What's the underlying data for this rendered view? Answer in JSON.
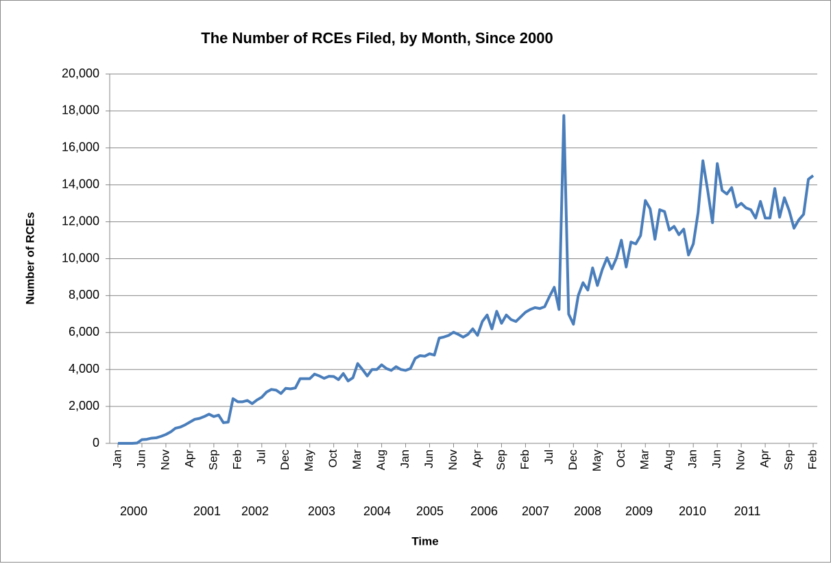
{
  "chart_data": {
    "type": "line",
    "title": "The Number of RCEs Filed, by Month, Since 2000",
    "x_label": "Time",
    "y_label": "Number of RCEs",
    "color": "#4a7ebb",
    "grid": true,
    "ylim": [
      0,
      20000
    ],
    "yticks": [
      0,
      {
        "value": 2000,
        "label": "2,000"
      },
      {
        "value": 4000,
        "label": "4,000"
      },
      {
        "value": 6000,
        "label": "6,000"
      },
      {
        "value": 8000,
        "label": "8,000"
      },
      {
        "value": 10000,
        "label": "10,000"
      },
      {
        "value": 12000,
        "label": "12,000"
      },
      {
        "value": 14000,
        "label": "14,000"
      },
      {
        "value": 16000,
        "label": "16,000"
      },
      {
        "value": 18000,
        "label": "18,000"
      },
      {
        "value": 20000,
        "label": "20,000"
      }
    ],
    "year_labels": [
      "2000",
      "2001",
      "2002",
      "2003",
      "2004",
      "2005",
      "2006",
      "2007",
      "2008",
      "2009",
      "2010",
      "2011"
    ],
    "categories": [
      "Jan",
      null,
      null,
      null,
      null,
      "Jun",
      null,
      null,
      null,
      null,
      "Nov",
      null,
      null,
      null,
      null,
      "Apr",
      null,
      null,
      null,
      null,
      "Sep",
      null,
      null,
      null,
      null,
      "Feb",
      null,
      null,
      null,
      null,
      "Jul",
      null,
      null,
      null,
      null,
      "Dec",
      null,
      null,
      null,
      null,
      "May",
      null,
      null,
      null,
      null,
      "Oct",
      null,
      null,
      null,
      null,
      "Mar",
      null,
      null,
      null,
      null,
      "Aug",
      null,
      null,
      null,
      null,
      "Jan",
      null,
      null,
      null,
      null,
      "Jun",
      null,
      null,
      null,
      null,
      "Nov",
      null,
      null,
      null,
      null,
      "Apr",
      null,
      null,
      null,
      null,
      "Sep",
      null,
      null,
      null,
      null,
      "Feb",
      null,
      null,
      null,
      null,
      "Jul",
      null,
      null,
      null,
      null,
      "Dec",
      null,
      null,
      null,
      null,
      "May",
      null,
      null,
      null,
      null,
      "Oct",
      null,
      null,
      null,
      null,
      "Mar",
      null,
      null,
      null,
      null,
      "Aug",
      null,
      null,
      null,
      null,
      "Jan",
      null,
      null,
      null,
      null,
      "Jun",
      null,
      null,
      null,
      null,
      "Nov",
      null,
      null,
      null,
      null,
      "Apr",
      null,
      null,
      null,
      null,
      "Sep",
      null,
      null,
      null,
      null,
      "Feb"
    ],
    "values": [
      0,
      0,
      0,
      0,
      20,
      200,
      220,
      280,
      300,
      380,
      480,
      620,
      820,
      880,
      1000,
      1150,
      1300,
      1350,
      1450,
      1580,
      1450,
      1530,
      1120,
      1150,
      2420,
      2250,
      2250,
      2320,
      2150,
      2350,
      2500,
      2780,
      2920,
      2880,
      2700,
      2980,
      2950,
      3000,
      3500,
      3500,
      3500,
      3750,
      3650,
      3520,
      3630,
      3620,
      3450,
      3780,
      3380,
      3550,
      4320,
      4000,
      3650,
      4000,
      4000,
      4250,
      4050,
      3950,
      4150,
      4000,
      3950,
      4050,
      4600,
      4750,
      4720,
      4850,
      4780,
      5700,
      5760,
      5850,
      6020,
      5900,
      5750,
      5900,
      6200,
      5850,
      6600,
      6950,
      6200,
      7150,
      6500,
      6950,
      6700,
      6600,
      6850,
      7100,
      7250,
      7350,
      7300,
      7400,
      7950,
      8450,
      7250,
      17750,
      7000,
      6450,
      8000,
      8700,
      8300,
      9500,
      8550,
      9400,
      10050,
      9450,
      10050,
      11000,
      9550,
      10900,
      10800,
      11250,
      13150,
      12700,
      11050,
      12650,
      12550,
      11550,
      11750,
      11300,
      11600,
      10200,
      10800,
      12500,
      15300,
      13700,
      11950,
      15150,
      13700,
      13500,
      13850,
      12800,
      13000,
      12750,
      12650,
      12200,
      13100,
      12200,
      12200,
      13800,
      12250,
      13300,
      12600,
      11650,
      12100,
      12400,
      14300,
      14500
    ]
  }
}
